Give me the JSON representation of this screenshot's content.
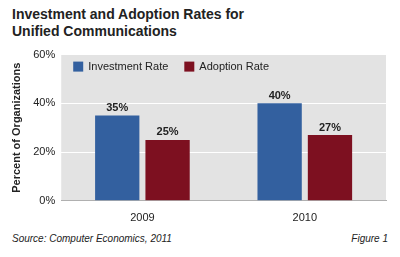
{
  "chart_data": {
    "type": "bar",
    "title": "Investment and Adoption Rates for Unified Communications",
    "categories": [
      "2009",
      "2010"
    ],
    "series": [
      {
        "name": "Investment Rate",
        "color": "#33609f",
        "values": [
          35,
          40
        ],
        "value_labels": [
          "35%",
          "40%"
        ]
      },
      {
        "name": "Adoption Rate",
        "color": "#7d1020",
        "values": [
          25,
          27
        ],
        "value_labels": [
          "25%",
          "27%"
        ]
      }
    ],
    "y_label": "Percent of Organizations",
    "ylim": [
      0,
      60
    ],
    "yticks": [
      {
        "value": 0,
        "label": "0%"
      },
      {
        "value": 20,
        "label": "20%"
      },
      {
        "value": 40,
        "label": "40%"
      },
      {
        "value": 60,
        "label": "60%"
      }
    ],
    "grid": true,
    "legend": "top-left",
    "data_labels": true,
    "annotations": [
      "Source: Computer Economics, 2011",
      "Figure 1"
    ]
  }
}
